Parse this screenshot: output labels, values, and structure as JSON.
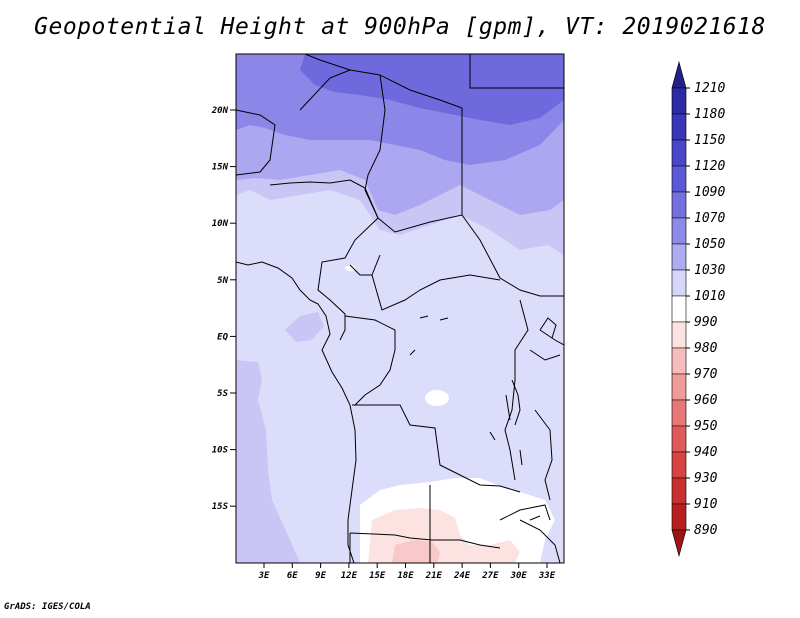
{
  "title": "Geopotential Height at 900hPa [gpm], VT: 2019021618",
  "credit": "GrADS: IGES/COLA",
  "map": {
    "lat_ticks": [
      "20N",
      "15N",
      "10N",
      "5N",
      "EQ",
      "5S",
      "10S",
      "15S"
    ],
    "lon_ticks": [
      "3E",
      "6E",
      "9E",
      "12E",
      "15E",
      "18E",
      "21E",
      "24E",
      "27E",
      "30E",
      "33E"
    ]
  },
  "colorbar": {
    "labels": [
      "1210",
      "1180",
      "1150",
      "1120",
      "1090",
      "1070",
      "1050",
      "1030",
      "1010",
      "990",
      "980",
      "970",
      "960",
      "950",
      "940",
      "930",
      "910",
      "890"
    ],
    "colors": [
      "#24208c",
      "#2c2aa4",
      "#3a36b8",
      "#4a46c8",
      "#5c58d6",
      "#7470e0",
      "#8e8ae8",
      "#aeabf0",
      "#d6d6fa",
      "#ffffff",
      "#fde2e2",
      "#f8bcbc",
      "#f09a9a",
      "#e87878",
      "#e05a5a",
      "#d84444",
      "#c83030",
      "#b82020",
      "#a01414"
    ]
  },
  "fill_colors": {
    "c1090": "#6f69de",
    "c1070": "#8c86e8",
    "c1050": "#aca7f0",
    "c1030": "#c9c6f6",
    "c1010": "#dcdcfb",
    "c990": "#ffffff",
    "c980": "#fde2e2",
    "c970": "#f9c8c8"
  }
}
